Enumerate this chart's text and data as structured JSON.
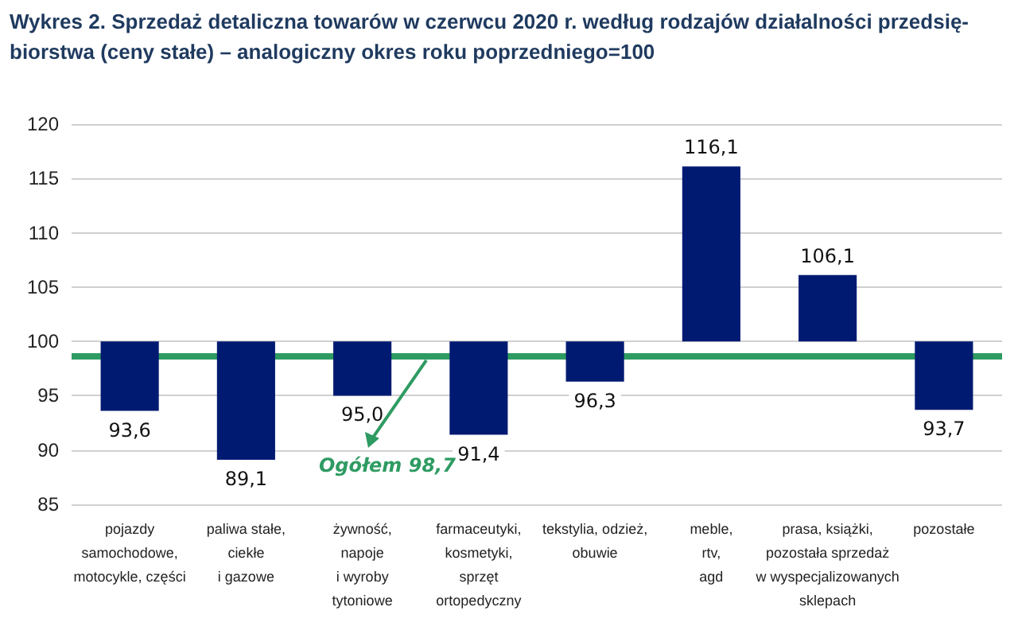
{
  "chart_data": {
    "type": "bar",
    "title": "Wykres 2. Sprzedaż detaliczna towarów w czerwcu 2020 r. według rodzajów działalności przedsię-\nbiorstwa (ceny stałe) – analogiczny okres roku poprzedniego=100",
    "categories": [
      "pojazdy\nsamochodowe,\nmotocykle, części",
      "paliwa stałe,\nciekłe\ni gazowe",
      "żywność,\nnapoje\ni wyroby\ntytoniowe",
      "farmaceutyki,\nkosmetyki,\nsprzęt\nortopedyczny",
      "tekstylia, odzież,\nobuwie",
      "meble,\nrtv,\nagd",
      "prasa, książki,\npozostała sprzedaż\nw wyspecjalizowanych\nsklepach",
      "pozostałe"
    ],
    "base": [
      100,
      100,
      100,
      100,
      100,
      100,
      100,
      100
    ],
    "values": [
      -6.4,
      -10.9,
      -5.0,
      -8.6,
      -3.7,
      16.1,
      6.1,
      -6.3
    ],
    "value_labels": [
      "93,6",
      "89,1",
      "95,0",
      "91,4",
      "96,3",
      "116,1",
      "106,1",
      "93,7"
    ],
    "color": "#001a72",
    "ylim": [
      85,
      120
    ],
    "yticks": [
      85,
      90,
      95,
      100,
      105,
      110,
      115,
      120
    ],
    "grid": "y",
    "ref_lines": [
      {
        "axis": "y",
        "value": 98.7,
        "label": "Ogółem 98,7",
        "color": "#2e9b62",
        "line_style": "solid"
      }
    ]
  }
}
